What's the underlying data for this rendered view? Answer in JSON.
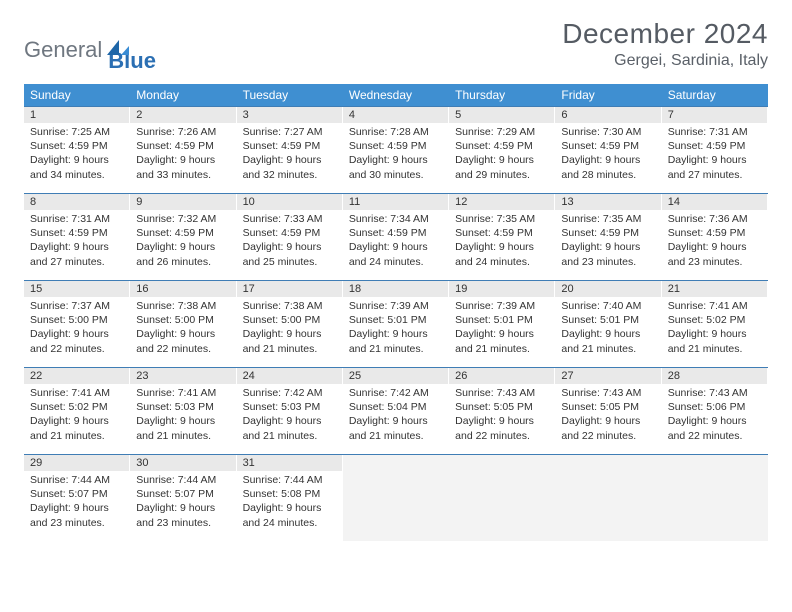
{
  "logo": {
    "part1": "General",
    "part2": "Blue",
    "color_gray": "#6f7780",
    "color_blue": "#2b6fb3"
  },
  "title": {
    "month": "December 2024",
    "location": "Gergei, Sardinia, Italy"
  },
  "colors": {
    "header_bg": "#3f8fd1",
    "week_border": "#3f7db5",
    "daynum_bg": "#e9e9e9",
    "empty_bg": "#f3f3f3"
  },
  "dow": [
    "Sunday",
    "Monday",
    "Tuesday",
    "Wednesday",
    "Thursday",
    "Friday",
    "Saturday"
  ],
  "weeks": [
    [
      {
        "n": "1",
        "sr": "Sunrise: 7:25 AM",
        "ss": "Sunset: 4:59 PM",
        "dl": "Daylight: 9 hours and 34 minutes."
      },
      {
        "n": "2",
        "sr": "Sunrise: 7:26 AM",
        "ss": "Sunset: 4:59 PM",
        "dl": "Daylight: 9 hours and 33 minutes."
      },
      {
        "n": "3",
        "sr": "Sunrise: 7:27 AM",
        "ss": "Sunset: 4:59 PM",
        "dl": "Daylight: 9 hours and 32 minutes."
      },
      {
        "n": "4",
        "sr": "Sunrise: 7:28 AM",
        "ss": "Sunset: 4:59 PM",
        "dl": "Daylight: 9 hours and 30 minutes."
      },
      {
        "n": "5",
        "sr": "Sunrise: 7:29 AM",
        "ss": "Sunset: 4:59 PM",
        "dl": "Daylight: 9 hours and 29 minutes."
      },
      {
        "n": "6",
        "sr": "Sunrise: 7:30 AM",
        "ss": "Sunset: 4:59 PM",
        "dl": "Daylight: 9 hours and 28 minutes."
      },
      {
        "n": "7",
        "sr": "Sunrise: 7:31 AM",
        "ss": "Sunset: 4:59 PM",
        "dl": "Daylight: 9 hours and 27 minutes."
      }
    ],
    [
      {
        "n": "8",
        "sr": "Sunrise: 7:31 AM",
        "ss": "Sunset: 4:59 PM",
        "dl": "Daylight: 9 hours and 27 minutes."
      },
      {
        "n": "9",
        "sr": "Sunrise: 7:32 AM",
        "ss": "Sunset: 4:59 PM",
        "dl": "Daylight: 9 hours and 26 minutes."
      },
      {
        "n": "10",
        "sr": "Sunrise: 7:33 AM",
        "ss": "Sunset: 4:59 PM",
        "dl": "Daylight: 9 hours and 25 minutes."
      },
      {
        "n": "11",
        "sr": "Sunrise: 7:34 AM",
        "ss": "Sunset: 4:59 PM",
        "dl": "Daylight: 9 hours and 24 minutes."
      },
      {
        "n": "12",
        "sr": "Sunrise: 7:35 AM",
        "ss": "Sunset: 4:59 PM",
        "dl": "Daylight: 9 hours and 24 minutes."
      },
      {
        "n": "13",
        "sr": "Sunrise: 7:35 AM",
        "ss": "Sunset: 4:59 PM",
        "dl": "Daylight: 9 hours and 23 minutes."
      },
      {
        "n": "14",
        "sr": "Sunrise: 7:36 AM",
        "ss": "Sunset: 4:59 PM",
        "dl": "Daylight: 9 hours and 23 minutes."
      }
    ],
    [
      {
        "n": "15",
        "sr": "Sunrise: 7:37 AM",
        "ss": "Sunset: 5:00 PM",
        "dl": "Daylight: 9 hours and 22 minutes."
      },
      {
        "n": "16",
        "sr": "Sunrise: 7:38 AM",
        "ss": "Sunset: 5:00 PM",
        "dl": "Daylight: 9 hours and 22 minutes."
      },
      {
        "n": "17",
        "sr": "Sunrise: 7:38 AM",
        "ss": "Sunset: 5:00 PM",
        "dl": "Daylight: 9 hours and 21 minutes."
      },
      {
        "n": "18",
        "sr": "Sunrise: 7:39 AM",
        "ss": "Sunset: 5:01 PM",
        "dl": "Daylight: 9 hours and 21 minutes."
      },
      {
        "n": "19",
        "sr": "Sunrise: 7:39 AM",
        "ss": "Sunset: 5:01 PM",
        "dl": "Daylight: 9 hours and 21 minutes."
      },
      {
        "n": "20",
        "sr": "Sunrise: 7:40 AM",
        "ss": "Sunset: 5:01 PM",
        "dl": "Daylight: 9 hours and 21 minutes."
      },
      {
        "n": "21",
        "sr": "Sunrise: 7:41 AM",
        "ss": "Sunset: 5:02 PM",
        "dl": "Daylight: 9 hours and 21 minutes."
      }
    ],
    [
      {
        "n": "22",
        "sr": "Sunrise: 7:41 AM",
        "ss": "Sunset: 5:02 PM",
        "dl": "Daylight: 9 hours and 21 minutes."
      },
      {
        "n": "23",
        "sr": "Sunrise: 7:41 AM",
        "ss": "Sunset: 5:03 PM",
        "dl": "Daylight: 9 hours and 21 minutes."
      },
      {
        "n": "24",
        "sr": "Sunrise: 7:42 AM",
        "ss": "Sunset: 5:03 PM",
        "dl": "Daylight: 9 hours and 21 minutes."
      },
      {
        "n": "25",
        "sr": "Sunrise: 7:42 AM",
        "ss": "Sunset: 5:04 PM",
        "dl": "Daylight: 9 hours and 21 minutes."
      },
      {
        "n": "26",
        "sr": "Sunrise: 7:43 AM",
        "ss": "Sunset: 5:05 PM",
        "dl": "Daylight: 9 hours and 22 minutes."
      },
      {
        "n": "27",
        "sr": "Sunrise: 7:43 AM",
        "ss": "Sunset: 5:05 PM",
        "dl": "Daylight: 9 hours and 22 minutes."
      },
      {
        "n": "28",
        "sr": "Sunrise: 7:43 AM",
        "ss": "Sunset: 5:06 PM",
        "dl": "Daylight: 9 hours and 22 minutes."
      }
    ],
    [
      {
        "n": "29",
        "sr": "Sunrise: 7:44 AM",
        "ss": "Sunset: 5:07 PM",
        "dl": "Daylight: 9 hours and 23 minutes."
      },
      {
        "n": "30",
        "sr": "Sunrise: 7:44 AM",
        "ss": "Sunset: 5:07 PM",
        "dl": "Daylight: 9 hours and 23 minutes."
      },
      {
        "n": "31",
        "sr": "Sunrise: 7:44 AM",
        "ss": "Sunset: 5:08 PM",
        "dl": "Daylight: 9 hours and 24 minutes."
      },
      {
        "empty": true
      },
      {
        "empty": true
      },
      {
        "empty": true
      },
      {
        "empty": true
      }
    ]
  ]
}
